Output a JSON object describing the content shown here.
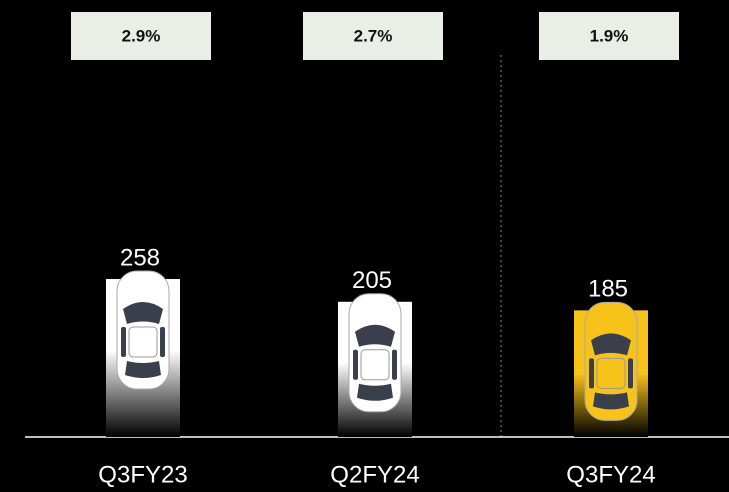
{
  "chart_data": {
    "type": "bar",
    "categories": [
      "Q3FY23",
      "Q2FY24",
      "Q3FY24"
    ],
    "values": [
      258,
      205,
      185
    ],
    "colors": [
      "#ffffff",
      "#ffffff",
      "#f7c21a"
    ],
    "top_values": [
      2.9,
      2.7,
      1.9
    ],
    "top_value_labels": [
      "2.9%",
      "2.7%",
      "1.9%"
    ],
    "ylim": [
      -110,
      300
    ]
  }
}
